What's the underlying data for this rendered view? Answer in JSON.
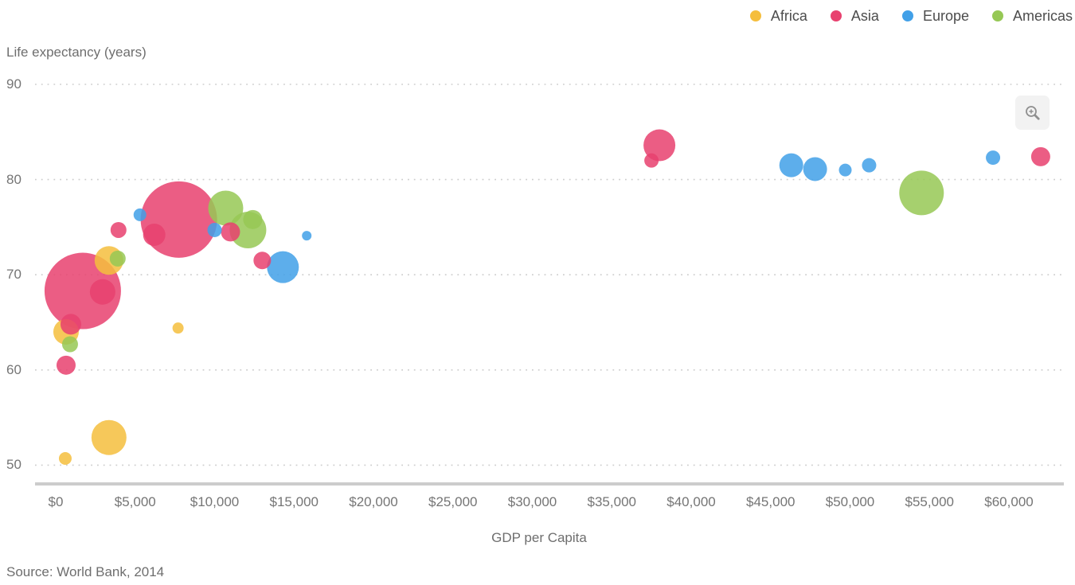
{
  "chart": {
    "y_axis_title": "Life expectancy (years)",
    "x_axis_title": "GDP per Capita",
    "source": "Source: World Bank, 2014"
  },
  "legend": {
    "position": "top-right",
    "items": [
      {
        "key": "africa",
        "label": "Africa",
        "color": "#F5BE3D"
      },
      {
        "key": "asia",
        "label": "Asia",
        "color": "#E8416F"
      },
      {
        "key": "europe",
        "label": "Europe",
        "color": "#41A0E8"
      },
      {
        "key": "americas",
        "label": "Americas",
        "color": "#96C855"
      }
    ]
  },
  "toolbar": {
    "zoom_icon": "magnifier-plus-icon"
  },
  "chart_data": {
    "type": "scatter",
    "title": "",
    "xlabel": "GDP per Capita",
    "ylabel": "Life expectancy (years)",
    "xlim": [
      -1300,
      63400
    ],
    "ylim": [
      48,
      90
    ],
    "grid": "horizontal-dotted",
    "legend_position": "top-right",
    "x_ticks": [
      {
        "value": 0,
        "label": "$0"
      },
      {
        "value": 5000,
        "label": "$5,000"
      },
      {
        "value": 10000,
        "label": "$10,000"
      },
      {
        "value": 15000,
        "label": "$15,000"
      },
      {
        "value": 20000,
        "label": "$20,000"
      },
      {
        "value": 25000,
        "label": "$25,000"
      },
      {
        "value": 30000,
        "label": "$30,000"
      },
      {
        "value": 35000,
        "label": "$35,000"
      },
      {
        "value": 40000,
        "label": "$40,000"
      },
      {
        "value": 45000,
        "label": "$45,000"
      },
      {
        "value": 50000,
        "label": "$50,000"
      },
      {
        "value": 55000,
        "label": "$55,000"
      },
      {
        "value": 60000,
        "label": "$60,000"
      }
    ],
    "y_ticks": [
      {
        "value": 90,
        "label": "90"
      },
      {
        "value": 80,
        "label": "80"
      },
      {
        "value": 70,
        "label": "70"
      },
      {
        "value": 60,
        "label": "60"
      },
      {
        "value": 50,
        "label": "50"
      }
    ],
    "bubble_size_note": "r is rendered bubble radius in px (size encodes population)",
    "series": [
      {
        "name": "Africa",
        "color": "#F5BE3D",
        "points": [
          {
            "gdp": 3350,
            "life_expectancy": 71.5,
            "r": 18
          },
          {
            "gdp": 650,
            "life_expectancy": 64.0,
            "r": 16
          },
          {
            "gdp": 3350,
            "life_expectancy": 52.9,
            "r": 22
          },
          {
            "gdp": 600,
            "life_expectancy": 50.7,
            "r": 8
          },
          {
            "gdp": 7700,
            "life_expectancy": 64.4,
            "r": 7
          }
        ]
      },
      {
        "name": "Asia",
        "color": "#E8416F",
        "points": [
          {
            "gdp": 1700,
            "life_expectancy": 68.3,
            "r": 48
          },
          {
            "gdp": 7750,
            "life_expectancy": 75.8,
            "r": 48
          },
          {
            "gdp": 2950,
            "life_expectancy": 68.2,
            "r": 16
          },
          {
            "gdp": 6200,
            "life_expectancy": 74.2,
            "r": 14
          },
          {
            "gdp": 3950,
            "life_expectancy": 74.7,
            "r": 10
          },
          {
            "gdp": 950,
            "life_expectancy": 64.8,
            "r": 13
          },
          {
            "gdp": 650,
            "life_expectancy": 60.5,
            "r": 12
          },
          {
            "gdp": 11000,
            "life_expectancy": 74.5,
            "r": 12
          },
          {
            "gdp": 13000,
            "life_expectancy": 71.5,
            "r": 11
          },
          {
            "gdp": 38000,
            "life_expectancy": 83.6,
            "r": 20
          },
          {
            "gdp": 37500,
            "life_expectancy": 82.0,
            "r": 9
          },
          {
            "gdp": 62000,
            "life_expectancy": 82.4,
            "r": 12
          }
        ]
      },
      {
        "name": "Europe",
        "color": "#41A0E8",
        "points": [
          {
            "gdp": 5300,
            "life_expectancy": 76.3,
            "r": 8
          },
          {
            "gdp": 10000,
            "life_expectancy": 74.7,
            "r": 9
          },
          {
            "gdp": 15800,
            "life_expectancy": 74.1,
            "r": 6
          },
          {
            "gdp": 14300,
            "life_expectancy": 70.8,
            "r": 20
          },
          {
            "gdp": 46300,
            "life_expectancy": 81.5,
            "r": 15
          },
          {
            "gdp": 47800,
            "life_expectancy": 81.1,
            "r": 15
          },
          {
            "gdp": 49700,
            "life_expectancy": 81.0,
            "r": 8
          },
          {
            "gdp": 51200,
            "life_expectancy": 81.5,
            "r": 9
          },
          {
            "gdp": 59000,
            "life_expectancy": 82.3,
            "r": 9
          }
        ]
      },
      {
        "name": "Americas",
        "color": "#96C855",
        "points": [
          {
            "gdp": 10700,
            "life_expectancy": 77.0,
            "r": 22
          },
          {
            "gdp": 12400,
            "life_expectancy": 75.8,
            "r": 12
          },
          {
            "gdp": 12100,
            "life_expectancy": 74.7,
            "r": 23
          },
          {
            "gdp": 3900,
            "life_expectancy": 71.7,
            "r": 10
          },
          {
            "gdp": 900,
            "life_expectancy": 62.7,
            "r": 10
          },
          {
            "gdp": 54500,
            "life_expectancy": 78.6,
            "r": 28
          }
        ]
      }
    ]
  }
}
